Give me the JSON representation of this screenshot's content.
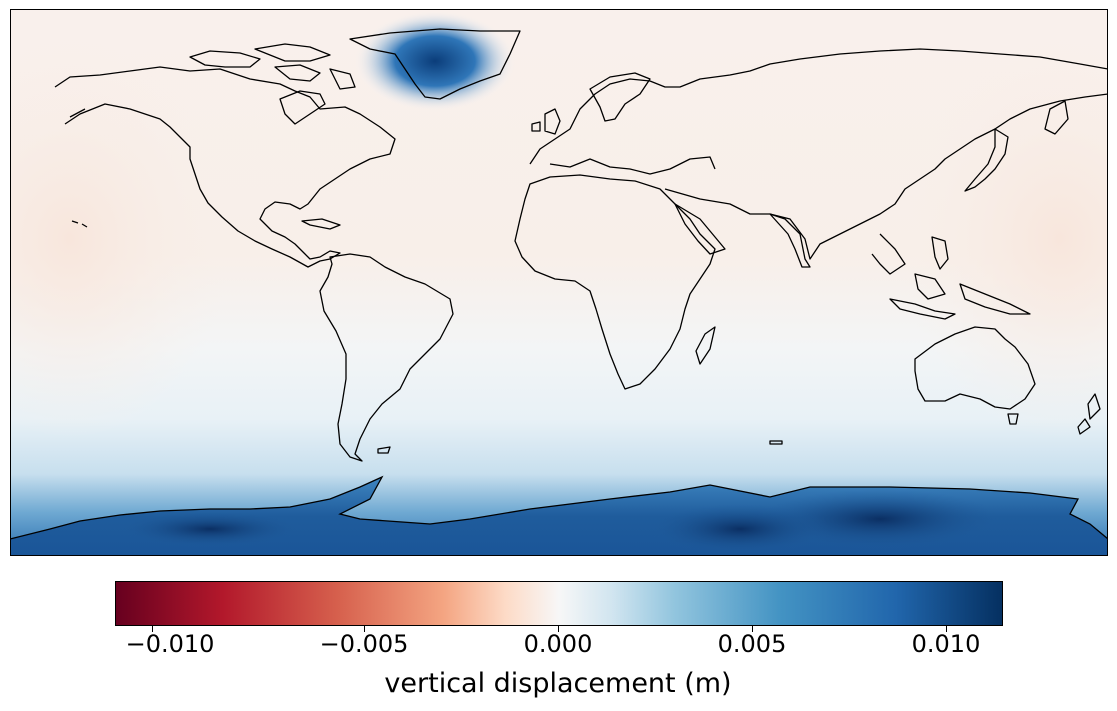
{
  "map": {
    "projection": "plate-carree",
    "field": "vertical displacement",
    "colormap": "RdBu",
    "colormap_colors": [
      "#67001f",
      "#b2182b",
      "#d6604d",
      "#f4a582",
      "#fddbc7",
      "#f7f7f7",
      "#d1e5f0",
      "#92c5de",
      "#4393c3",
      "#2166ac",
      "#053061"
    ],
    "coastline_color": "#000000",
    "features": [
      {
        "name": "greenland",
        "value": 0.011
      },
      {
        "name": "antarctica-east",
        "value": 0.012
      },
      {
        "name": "antarctica-west",
        "value": 0.009
      },
      {
        "name": "pacific-ocean",
        "value": -0.001
      }
    ]
  },
  "colorbar": {
    "label": "vertical displacement (m)",
    "range": [
      -0.0115,
      0.0115
    ],
    "ticks": [
      "−0.010",
      "−0.005",
      "0.000",
      "0.005",
      "0.010"
    ],
    "tick_values": [
      -0.01,
      -0.005,
      0.0,
      0.005,
      0.01
    ]
  }
}
